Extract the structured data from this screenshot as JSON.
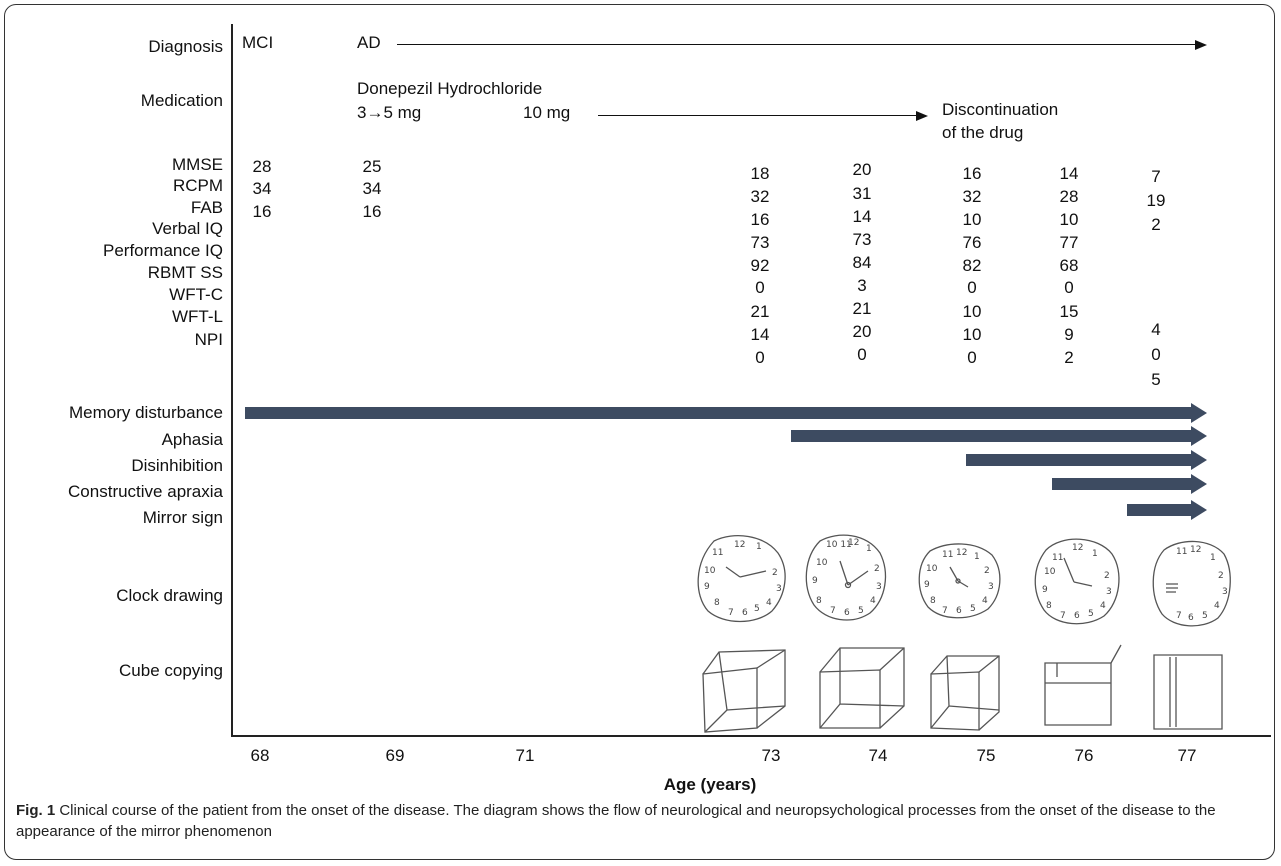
{
  "figure": {
    "labels": {
      "diagnosis": "Diagnosis",
      "medication": "Medication",
      "mmse": "MMSE",
      "rcpm": "RCPM",
      "fab": "FAB",
      "verbal_iq": "Verbal IQ",
      "performance_iq": "Performance IQ",
      "rbmt_ss": "RBMT SS",
      "wft_c": "WFT-C",
      "wft_l": "WFT-L",
      "npi": "NPI",
      "memory": "Memory disturbance",
      "aphasia": "Aphasia",
      "disinhibition": "Disinhibition",
      "apraxia": "Constructive apraxia",
      "mirror": "Mirror sign",
      "clock": "Clock drawing",
      "cube": "Cube copying"
    },
    "diagnosis": {
      "mci": "MCI",
      "ad": "AD"
    },
    "medication": {
      "drug": "Donepezil Hydrochloride",
      "dose1": "3→5 mg",
      "dose2": "10 mg",
      "stop1": "Discontinuation",
      "stop2": "of the drug"
    },
    "x_ticks": [
      "68",
      "69",
      "71",
      "73",
      "74",
      "75",
      "76",
      "77"
    ],
    "x_title": "Age (years)",
    "scores": {
      "c68": {
        "mmse": "28",
        "rcpm": "34",
        "fab": "16"
      },
      "c69": {
        "mmse": "25",
        "rcpm": "34",
        "fab": "16"
      },
      "c73": {
        "mmse": "18",
        "rcpm": "32",
        "fab": "16",
        "viq": "73",
        "piq": "92",
        "rbmt": "0",
        "wftc": "21",
        "wftl": "14",
        "npi": "0"
      },
      "c74": {
        "mmse": "20",
        "rcpm": "31",
        "fab": "14",
        "viq": "73",
        "piq": "84",
        "rbmt": "3",
        "wftc": "21",
        "wftl": "20",
        "npi": "0"
      },
      "c75": {
        "mmse": "16",
        "rcpm": "32",
        "fab": "10",
        "viq": "76",
        "piq": "82",
        "rbmt": "0",
        "wftc": "10",
        "wftl": "10",
        "npi": "0"
      },
      "c76": {
        "mmse": "14",
        "rcpm": "28",
        "fab": "10",
        "viq": "77",
        "piq": "68",
        "rbmt": "0",
        "wftc": "15",
        "wftl": "9",
        "npi": "2"
      },
      "c77": {
        "mmse": "7",
        "rcpm": "19",
        "fab": "2",
        "wftc": "4",
        "wftl": "0",
        "npi": "5"
      }
    },
    "caption": {
      "label": "Fig. 1",
      "text": " Clinical course of the patient from the onset of the disease. The diagram shows the flow of neurological and neuropsychological processes from the onset of the disease to the appearance of the mirror phenomenon"
    },
    "colors": {
      "bar": "#3d4b61",
      "line": "#111111"
    }
  }
}
